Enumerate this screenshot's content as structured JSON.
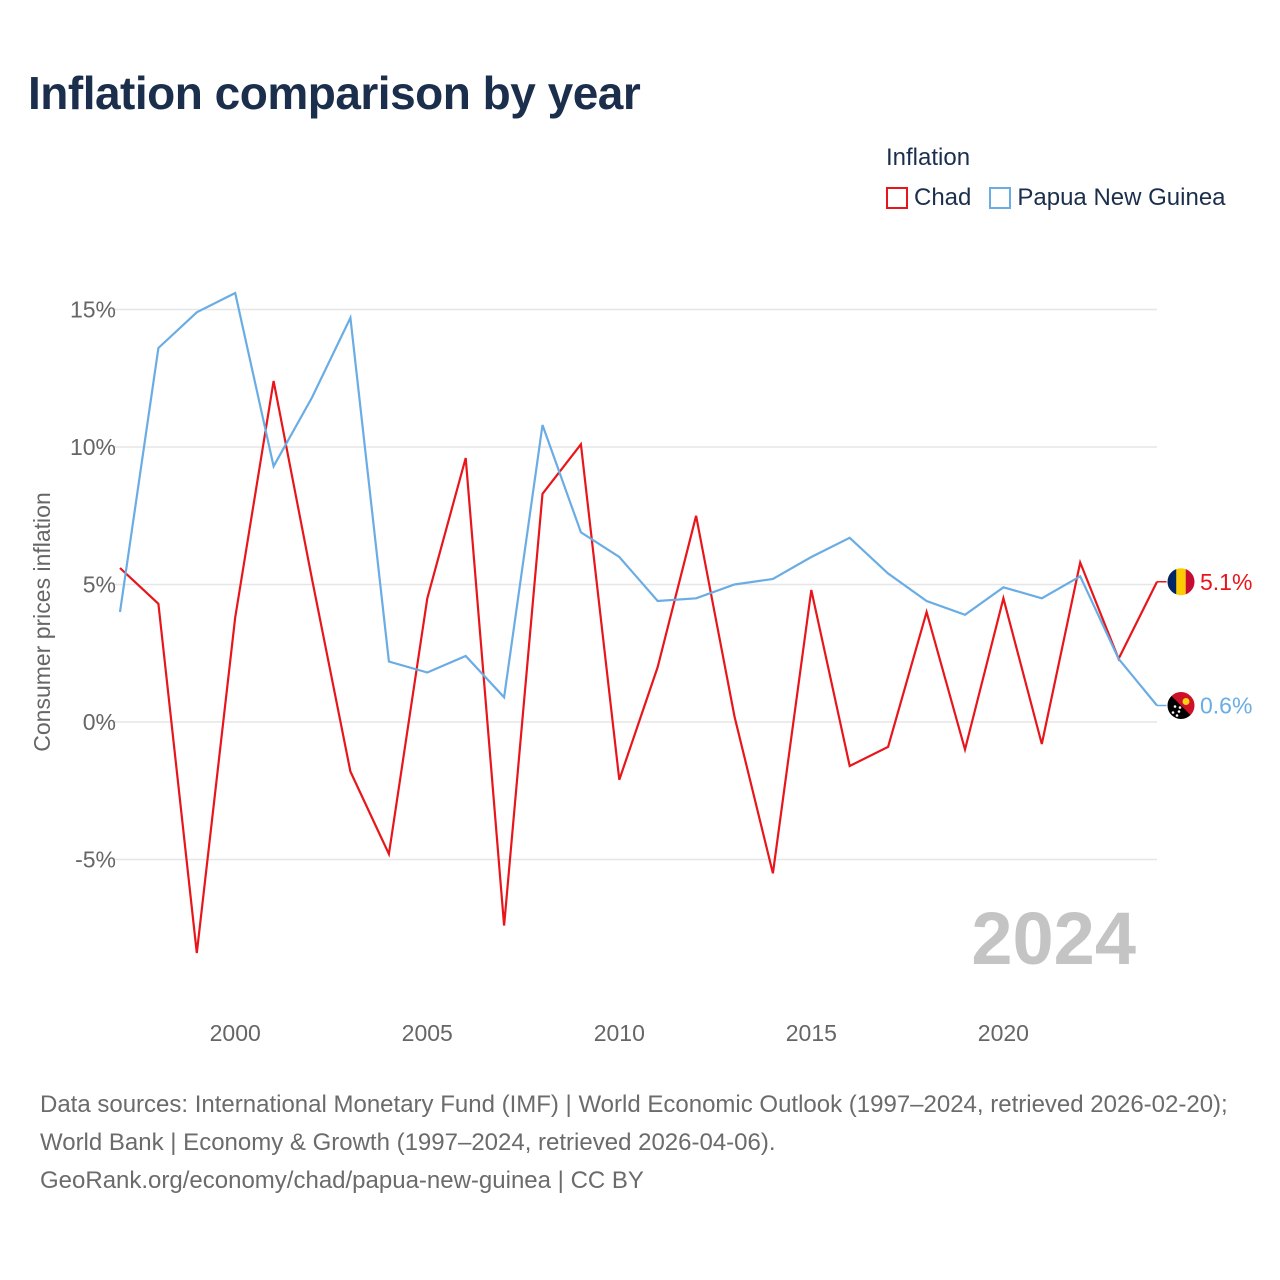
{
  "title": "Inflation comparison by year",
  "legend": {
    "title": "Inflation",
    "items": [
      {
        "label": "Chad",
        "color": "#e8161b"
      },
      {
        "label": "Papua New Guinea",
        "color": "#6aace4"
      }
    ]
  },
  "chart_data": {
    "type": "line",
    "title": "Inflation comparison by year",
    "xlabel": "",
    "ylabel": "Consumer prices inflation",
    "xlim": [
      1997,
      2024
    ],
    "ylim": [
      -10,
      17
    ],
    "x_ticks": [
      2000,
      2005,
      2010,
      2015,
      2020
    ],
    "y_ticks": [
      -5,
      0,
      5,
      10,
      15
    ],
    "y_tick_labels": [
      "-5%",
      "0%",
      "5%",
      "10%",
      "15%"
    ],
    "grid": true,
    "year_watermark": "2024",
    "x": [
      1997,
      1998,
      1999,
      2000,
      2001,
      2002,
      2003,
      2004,
      2005,
      2006,
      2007,
      2008,
      2009,
      2010,
      2011,
      2012,
      2013,
      2014,
      2015,
      2016,
      2017,
      2018,
      2019,
      2020,
      2021,
      2022,
      2023,
      2024
    ],
    "series": [
      {
        "name": "Chad",
        "color": "#e8161b",
        "end_label": "5.1%",
        "flag_icon": "chad-flag-icon",
        "values": [
          5.6,
          4.3,
          -8.4,
          3.8,
          12.4,
          5.2,
          -1.8,
          -4.8,
          4.5,
          9.6,
          -7.4,
          8.3,
          10.1,
          -2.1,
          2.0,
          7.5,
          0.2,
          -5.5,
          4.8,
          -1.6,
          -0.9,
          4.0,
          -1.0,
          4.5,
          -0.8,
          5.8,
          2.3,
          5.1
        ]
      },
      {
        "name": "Papua New Guinea",
        "color": "#6aace4",
        "end_label": "0.6%",
        "flag_icon": "papua-new-guinea-flag-icon",
        "values": [
          4.0,
          13.6,
          14.9,
          15.6,
          9.3,
          11.8,
          14.7,
          2.2,
          1.8,
          2.4,
          0.9,
          10.8,
          6.9,
          6.0,
          4.4,
          4.5,
          5.0,
          5.2,
          6.0,
          6.7,
          5.4,
          4.4,
          3.9,
          4.9,
          4.5,
          5.3,
          2.3,
          0.6
        ]
      }
    ]
  },
  "footer": {
    "line1": "Data sources: International Monetary Fund (IMF) | World Economic Outlook (1997–2024, retrieved 2026-02-20); World Bank | Economy & Growth (1997–2024, retrieved 2026-04-06).",
    "line2": "GeoRank.org/economy/chad/papua-new-guinea | CC BY"
  }
}
